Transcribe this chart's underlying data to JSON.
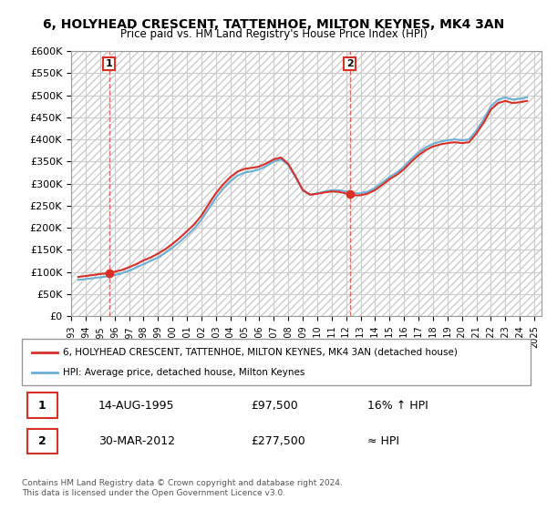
{
  "title": "6, HOLYHEAD CRESCENT, TATTENHOE, MILTON KEYNES, MK4 3AN",
  "subtitle": "Price paid vs. HM Land Registry's House Price Index (HPI)",
  "legend_line1": "6, HOLYHEAD CRESCENT, TATTENHOE, MILTON KEYNES, MK4 3AN (detached house)",
  "legend_line2": "HPI: Average price, detached house, Milton Keynes",
  "annotation1_label": "1",
  "annotation1_date": "14-AUG-1995",
  "annotation1_price": "£97,500",
  "annotation1_hpi": "16% ↑ HPI",
  "annotation2_label": "2",
  "annotation2_date": "30-MAR-2012",
  "annotation2_price": "£277,500",
  "annotation2_hpi": "≈ HPI",
  "footer": "Contains HM Land Registry data © Crown copyright and database right 2024.\nThis data is licensed under the Open Government Licence v3.0.",
  "sale1_x": 1995.617,
  "sale1_y": 97500,
  "sale2_x": 2012.247,
  "sale2_y": 277500,
  "hpi_color": "#6baed6",
  "price_color": "#d73027",
  "bg_color": "#ffffff",
  "grid_color": "#cccccc",
  "hatch_color": "#dddddd",
  "ylim": [
    0,
    600000
  ],
  "yticks": [
    0,
    50000,
    100000,
    150000,
    200000,
    250000,
    300000,
    350000,
    400000,
    450000,
    500000,
    550000,
    600000
  ],
  "xlim_start": 1993,
  "xlim_end": 2025.5,
  "hpi_x": [
    1993.5,
    1994.0,
    1994.5,
    1995.0,
    1995.5,
    1996.0,
    1996.5,
    1997.0,
    1997.5,
    1998.0,
    1998.5,
    1999.0,
    1999.5,
    2000.0,
    2000.5,
    2001.0,
    2001.5,
    2002.0,
    2002.5,
    2003.0,
    2003.5,
    2004.0,
    2004.5,
    2005.0,
    2005.5,
    2006.0,
    2006.5,
    2007.0,
    2007.5,
    2008.0,
    2008.5,
    2009.0,
    2009.5,
    2010.0,
    2010.5,
    2011.0,
    2011.5,
    2012.0,
    2012.5,
    2013.0,
    2013.5,
    2014.0,
    2014.5,
    2015.0,
    2015.5,
    2016.0,
    2016.5,
    2017.0,
    2017.5,
    2018.0,
    2018.5,
    2019.0,
    2019.5,
    2020.0,
    2020.5,
    2021.0,
    2021.5,
    2022.0,
    2022.5,
    2023.0,
    2023.5,
    2024.0,
    2024.5
  ],
  "hpi_y": [
    82000,
    84000,
    86000,
    88000,
    90000,
    93000,
    97000,
    103000,
    110000,
    118000,
    125000,
    133000,
    143000,
    155000,
    168000,
    183000,
    198000,
    218000,
    243000,
    268000,
    288000,
    305000,
    318000,
    325000,
    328000,
    332000,
    340000,
    350000,
    355000,
    342000,
    315000,
    285000,
    275000,
    278000,
    282000,
    285000,
    285000,
    282000,
    278000,
    278000,
    282000,
    290000,
    302000,
    315000,
    325000,
    338000,
    355000,
    370000,
    382000,
    390000,
    395000,
    398000,
    400000,
    398000,
    400000,
    420000,
    445000,
    475000,
    490000,
    495000,
    490000,
    492000,
    495000
  ],
  "price_x": [
    1993.5,
    1994.0,
    1994.5,
    1995.0,
    1995.5,
    1996.0,
    1996.5,
    1997.0,
    1997.5,
    1998.0,
    1998.5,
    1999.0,
    1999.5,
    2000.0,
    2000.5,
    2001.0,
    2001.5,
    2002.0,
    2002.5,
    2003.0,
    2003.5,
    2004.0,
    2004.5,
    2005.0,
    2005.5,
    2006.0,
    2006.5,
    2007.0,
    2007.5,
    2008.0,
    2008.5,
    2009.0,
    2009.5,
    2010.0,
    2010.5,
    2011.0,
    2011.5,
    2012.0,
    2012.5,
    2013.0,
    2013.5,
    2014.0,
    2014.5,
    2015.0,
    2015.5,
    2016.0,
    2016.5,
    2017.0,
    2017.5,
    2018.0,
    2018.5,
    2019.0,
    2019.5,
    2020.0,
    2020.5,
    2021.0,
    2021.5,
    2022.0,
    2022.5,
    2023.0,
    2023.5,
    2024.0,
    2024.5
  ],
  "price_y": [
    82000,
    84000,
    86000,
    88000,
    90000,
    93000,
    97000,
    103000,
    110000,
    118000,
    125000,
    133000,
    143000,
    155000,
    168000,
    183000,
    198000,
    218000,
    243000,
    268000,
    288000,
    305000,
    318000,
    325000,
    328000,
    332000,
    340000,
    350000,
    355000,
    342000,
    315000,
    285000,
    275000,
    278000,
    282000,
    285000,
    285000,
    282000,
    278000,
    278000,
    282000,
    290000,
    302000,
    315000,
    325000,
    338000,
    355000,
    370000,
    382000,
    390000,
    395000,
    398000,
    400000,
    398000,
    400000,
    420000,
    445000,
    475000,
    490000,
    495000,
    490000,
    492000,
    495000
  ]
}
